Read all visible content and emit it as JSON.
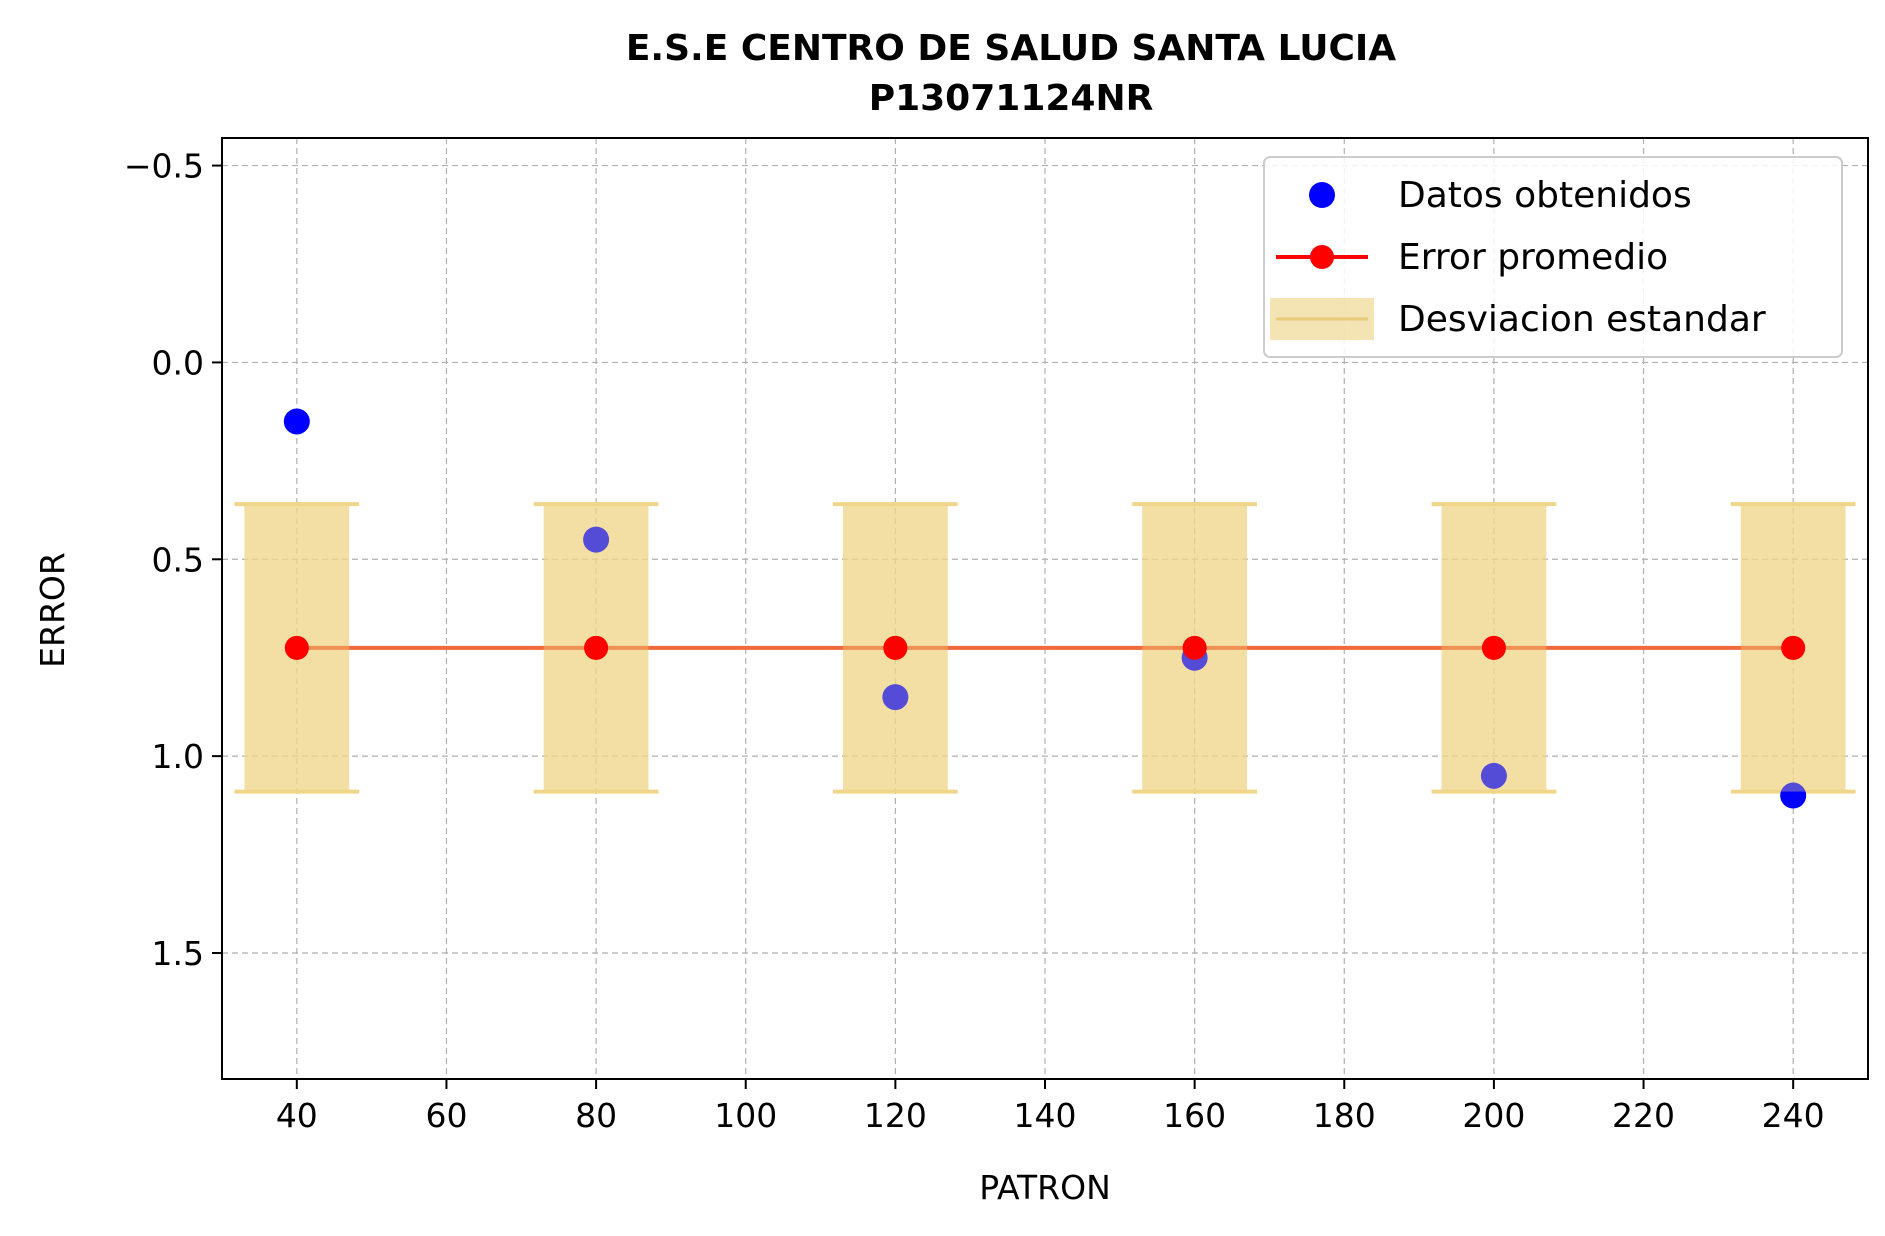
{
  "chart_data": {
    "type": "scatter",
    "title": "E.S.E CENTRO DE SALUD SANTA LUCIA",
    "subtitle": "P13071124NR",
    "xlabel": "PATRON",
    "ylabel": "ERROR",
    "xlim": [
      30,
      250
    ],
    "ylim": [
      1.82,
      -0.57
    ],
    "y_inverted": true,
    "grid": true,
    "legend_position": "top-right",
    "x_ticks": [
      40,
      60,
      80,
      100,
      120,
      140,
      160,
      180,
      200,
      220,
      240
    ],
    "y_ticks": [
      -0.5,
      0.0,
      0.5,
      1.0,
      1.5
    ],
    "y_tick_labels": [
      "−0.5",
      "0.0",
      "0.5",
      "1.0",
      "1.5"
    ],
    "x": [
      40,
      80,
      120,
      160,
      200,
      240
    ],
    "series": [
      {
        "name": "Datos obtenidos",
        "kind": "scatter",
        "color": "#0000ff",
        "values": [
          0.15,
          0.45,
          0.85,
          0.75,
          1.05,
          1.1
        ]
      },
      {
        "name": "Error promedio",
        "kind": "line",
        "color": "#ff0000",
        "line_color": "#f06a3a",
        "values": [
          0.725,
          0.725,
          0.725,
          0.725,
          0.725,
          0.725
        ]
      },
      {
        "name": "Desviacion estandar",
        "kind": "band",
        "color": "#f0d68a",
        "lower": [
          0.36,
          0.36,
          0.36,
          0.36,
          0.36,
          0.36
        ],
        "upper": [
          1.09,
          1.09,
          1.09,
          1.09,
          1.09,
          1.09
        ],
        "half_width": 7
      }
    ]
  }
}
